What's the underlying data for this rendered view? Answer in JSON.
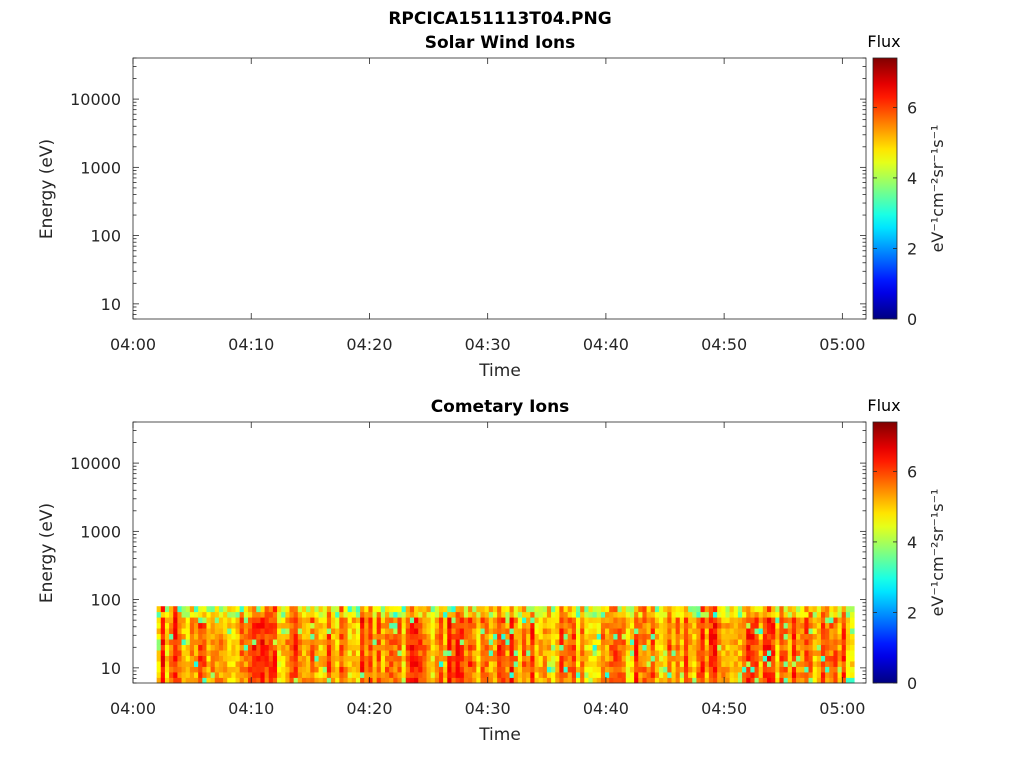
{
  "figure_title": "RPCICA151113T04.PNG",
  "chart_data": [
    {
      "type": "heatmap",
      "title": "Solar Wind Ions",
      "xlabel": "Time",
      "ylabel": "Energy (eV)",
      "x_ticks": [
        "04:00",
        "04:10",
        "04:20",
        "04:30",
        "04:40",
        "04:50",
        "05:00"
      ],
      "xlim": [
        "04:00",
        "05:02"
      ],
      "y_scale": "log",
      "y_ticks": [
        10,
        100,
        1000,
        10000
      ],
      "ylim": [
        6,
        40000
      ],
      "grid": false,
      "data": "empty",
      "colorbar": {
        "label": "Flux",
        "units": "eV⁻¹cm⁻²sr⁻¹s⁻¹",
        "ticks": [
          0,
          2,
          4,
          6
        ],
        "range": [
          0,
          7.4
        ],
        "colormap": "jet"
      }
    },
    {
      "type": "heatmap",
      "title": "Cometary Ions",
      "xlabel": "Time",
      "ylabel": "Energy (eV)",
      "x_ticks": [
        "04:00",
        "04:10",
        "04:20",
        "04:30",
        "04:40",
        "04:50",
        "05:00"
      ],
      "xlim": [
        "04:00",
        "05:02"
      ],
      "y_scale": "log",
      "y_ticks": [
        10,
        100,
        1000,
        10000
      ],
      "ylim": [
        6,
        40000
      ],
      "grid": false,
      "data_extent": {
        "time": [
          "04:02",
          "05:01"
        ],
        "energy_eV": [
          6,
          80
        ]
      },
      "flux_range_observed": [
        3,
        7
      ],
      "colorbar": {
        "label": "Flux",
        "units": "eV⁻¹cm⁻²sr⁻¹s⁻¹",
        "ticks": [
          0,
          2,
          4,
          6
        ],
        "range": [
          0,
          7.4
        ],
        "colormap": "jet"
      }
    }
  ]
}
